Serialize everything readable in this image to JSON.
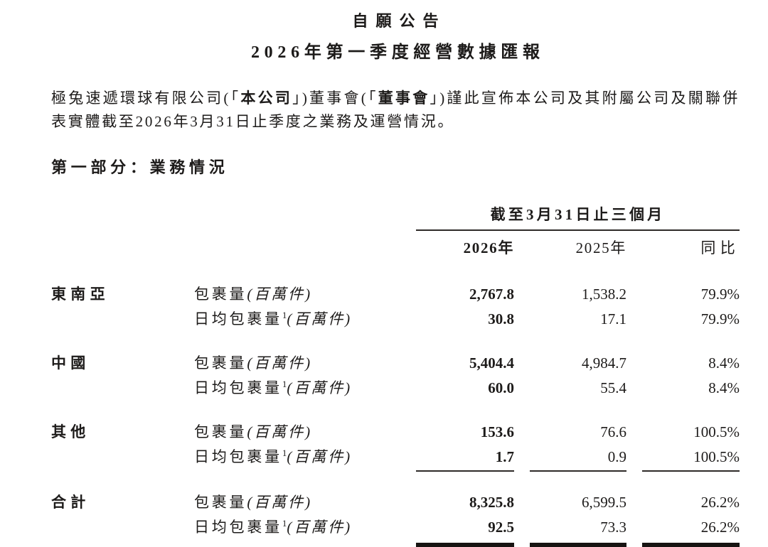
{
  "colors": {
    "background": "#ffffff",
    "text": "#1d1b1a",
    "rule_thin": "#2e2a28",
    "rule_thick": "#171412"
  },
  "header": {
    "title": "自願公告",
    "subtitle": "2026年第一季度經營數據匯報"
  },
  "intro": {
    "seg1": "極兔速遞環球有限公司(「",
    "term1": "本公司",
    "seg2": "」)董事會(「",
    "term2": "董事會",
    "seg3": "」)謹此宣佈本公司及其附屬公司及關聯併表實體截至2026年3月31日止季度之業務及運營情況。"
  },
  "section": {
    "title": "第一部分：業務情況"
  },
  "table": {
    "period_header": "截至3月31日止三個月",
    "col_2026": "2026年",
    "col_2025": "2025年",
    "col_yoy": "同比",
    "groups": [
      {
        "region": "東南亞",
        "rows": [
          {
            "metric": "包裹量",
            "sup": "",
            "unit": "(百萬件)",
            "v2026": "2,767.8",
            "v2025": "1,538.2",
            "yoy": "79.9%"
          },
          {
            "metric": "日均包裹量",
            "sup": "1",
            "unit": "(百萬件)",
            "v2026": "30.8",
            "v2025": "17.1",
            "yoy": "79.9%"
          }
        ]
      },
      {
        "region": "中國",
        "rows": [
          {
            "metric": "包裹量",
            "sup": "",
            "unit": "(百萬件)",
            "v2026": "5,404.4",
            "v2025": "4,984.7",
            "yoy": "8.4%"
          },
          {
            "metric": "日均包裹量",
            "sup": "1",
            "unit": "(百萬件)",
            "v2026": "60.0",
            "v2025": "55.4",
            "yoy": "8.4%"
          }
        ]
      },
      {
        "region": "其他",
        "rows": [
          {
            "metric": "包裹量",
            "sup": "",
            "unit": "(百萬件)",
            "v2026": "153.6",
            "v2025": "76.6",
            "yoy": "100.5%"
          },
          {
            "metric": "日均包裹量",
            "sup": "1",
            "unit": "(百萬件)",
            "v2026": "1.7",
            "v2025": "0.9",
            "yoy": "100.5%"
          }
        ]
      },
      {
        "region": "合計",
        "rows": [
          {
            "metric": "包裹量",
            "sup": "",
            "unit": "(百萬件)",
            "v2026": "8,325.8",
            "v2025": "6,599.5",
            "yoy": "26.2%"
          },
          {
            "metric": "日均包裹量",
            "sup": "1",
            "unit": "(百萬件)",
            "v2026": "92.5",
            "v2025": "73.3",
            "yoy": "26.2%"
          }
        ]
      }
    ]
  }
}
